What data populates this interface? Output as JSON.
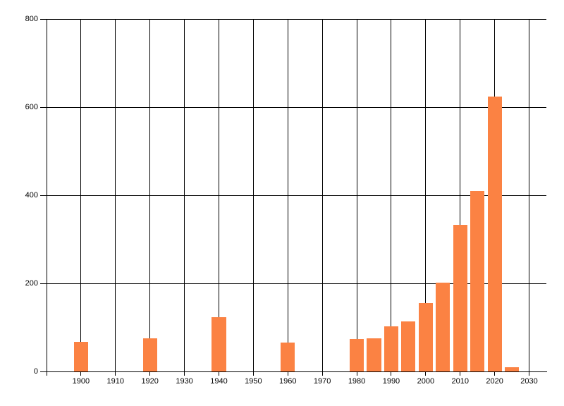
{
  "chart_data": {
    "type": "bar",
    "title": "",
    "x": [
      1900,
      1920,
      1940,
      1960,
      1980,
      1985,
      1990,
      1995,
      2000,
      2005,
      2010,
      2015,
      2020,
      2025
    ],
    "values": [
      67,
      76,
      123,
      65,
      73,
      76,
      103,
      114,
      155,
      201,
      333,
      410,
      624,
      10
    ],
    "xlim": [
      1890,
      2035
    ],
    "ylim": [
      0,
      800
    ],
    "xticks": [
      1900,
      1910,
      1920,
      1930,
      1940,
      1950,
      1960,
      1970,
      1980,
      1990,
      2000,
      2010,
      2020,
      2030
    ],
    "yticks": [
      0,
      200,
      400,
      600,
      800
    ],
    "xtick_labels": [
      "1900",
      "1910",
      "1920",
      "1930",
      "1940",
      "1950",
      "1960",
      "1970",
      "1980",
      "1990",
      "2000",
      "2010",
      "2020",
      "2030"
    ],
    "ytick_labels": [
      "0",
      "200",
      "400",
      "600",
      "800"
    ],
    "xlabel": "",
    "ylabel": "",
    "grid": true,
    "legend": null,
    "bar_width_years": 4.1,
    "colors": {
      "bar": "#FB8243",
      "grid": "#000000",
      "axis": "#000000",
      "text": "#000000",
      "background": "#FFFFFF"
    }
  }
}
